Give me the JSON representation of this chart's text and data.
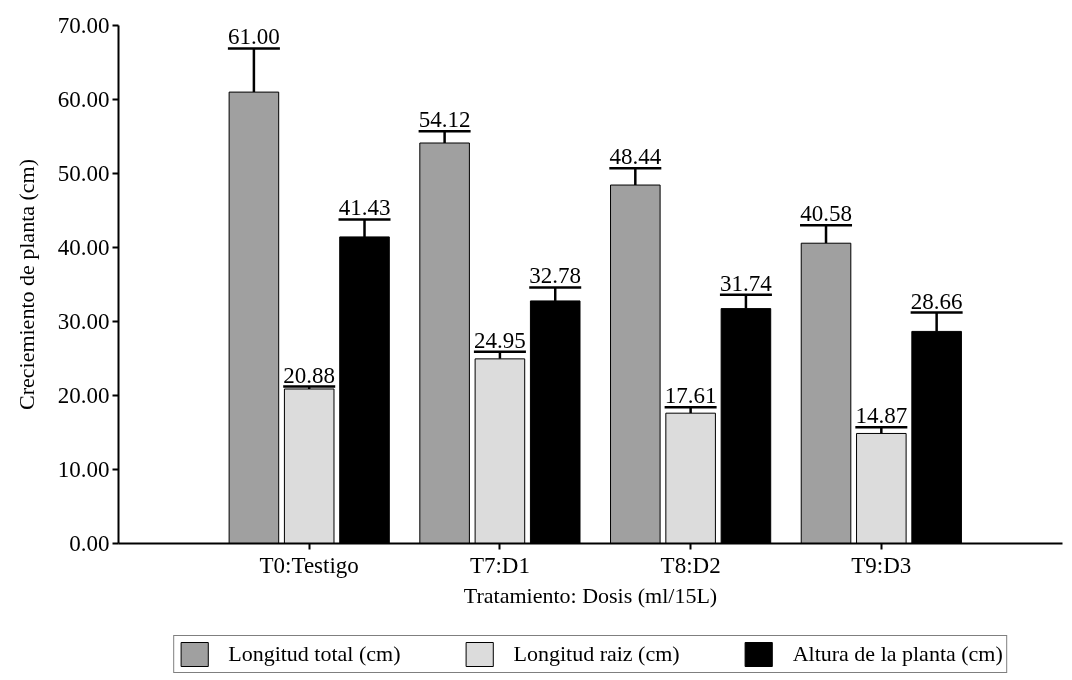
{
  "chart_data": {
    "type": "bar",
    "xlabel": "Tratamiento: Dosis (ml/15L)",
    "ylabel": "Creciemiento de planta (cm)",
    "categories": [
      "T0:Testigo",
      "T7:D1",
      "T8:D2",
      "T9:D3"
    ],
    "series": [
      {
        "name": "Longitud total (cm)",
        "color": "#a0a0a0",
        "values": [
          61.0,
          54.12,
          48.44,
          40.58
        ],
        "errors": [
          [
            61.0,
            66.9
          ],
          [
            54.12,
            55.7
          ],
          [
            48.44,
            50.7
          ],
          [
            40.58,
            43.0
          ]
        ],
        "value_labels": [
          "61.00",
          "54.12",
          "48.44",
          "40.58"
        ]
      },
      {
        "name": "Longitud raiz (cm)",
        "color": "#dcdcdc",
        "values": [
          20.88,
          24.95,
          17.61,
          14.87
        ],
        "errors": [
          [
            20.88,
            21.2
          ],
          [
            24.95,
            25.9
          ],
          [
            17.61,
            18.4
          ],
          [
            14.87,
            15.7
          ]
        ],
        "value_labels": [
          "20.88",
          "24.95",
          "17.61",
          "14.87"
        ]
      },
      {
        "name": "Altura de la planta (cm)",
        "color": "#000000",
        "values": [
          41.43,
          32.78,
          31.74,
          28.66
        ],
        "errors": [
          [
            41.43,
            43.8
          ],
          [
            32.78,
            34.6
          ],
          [
            31.74,
            33.6
          ],
          [
            28.66,
            31.2
          ]
        ],
        "value_labels": [
          "41.43",
          "32.78",
          "31.74",
          "28.66"
        ]
      }
    ],
    "ylim": [
      0,
      70
    ],
    "yticks": [
      {
        "value": 0,
        "label": "0.00"
      },
      {
        "value": 10,
        "label": "10.00"
      },
      {
        "value": 20,
        "label": "20.00"
      },
      {
        "value": 30,
        "label": "30.00"
      },
      {
        "value": 40,
        "label": "40.00"
      },
      {
        "value": 50,
        "label": "50.00"
      },
      {
        "value": 60,
        "label": "60.00"
      },
      {
        "value": 70,
        "label": "70.00"
      }
    ],
    "grid": false,
    "legend": "bottom"
  }
}
